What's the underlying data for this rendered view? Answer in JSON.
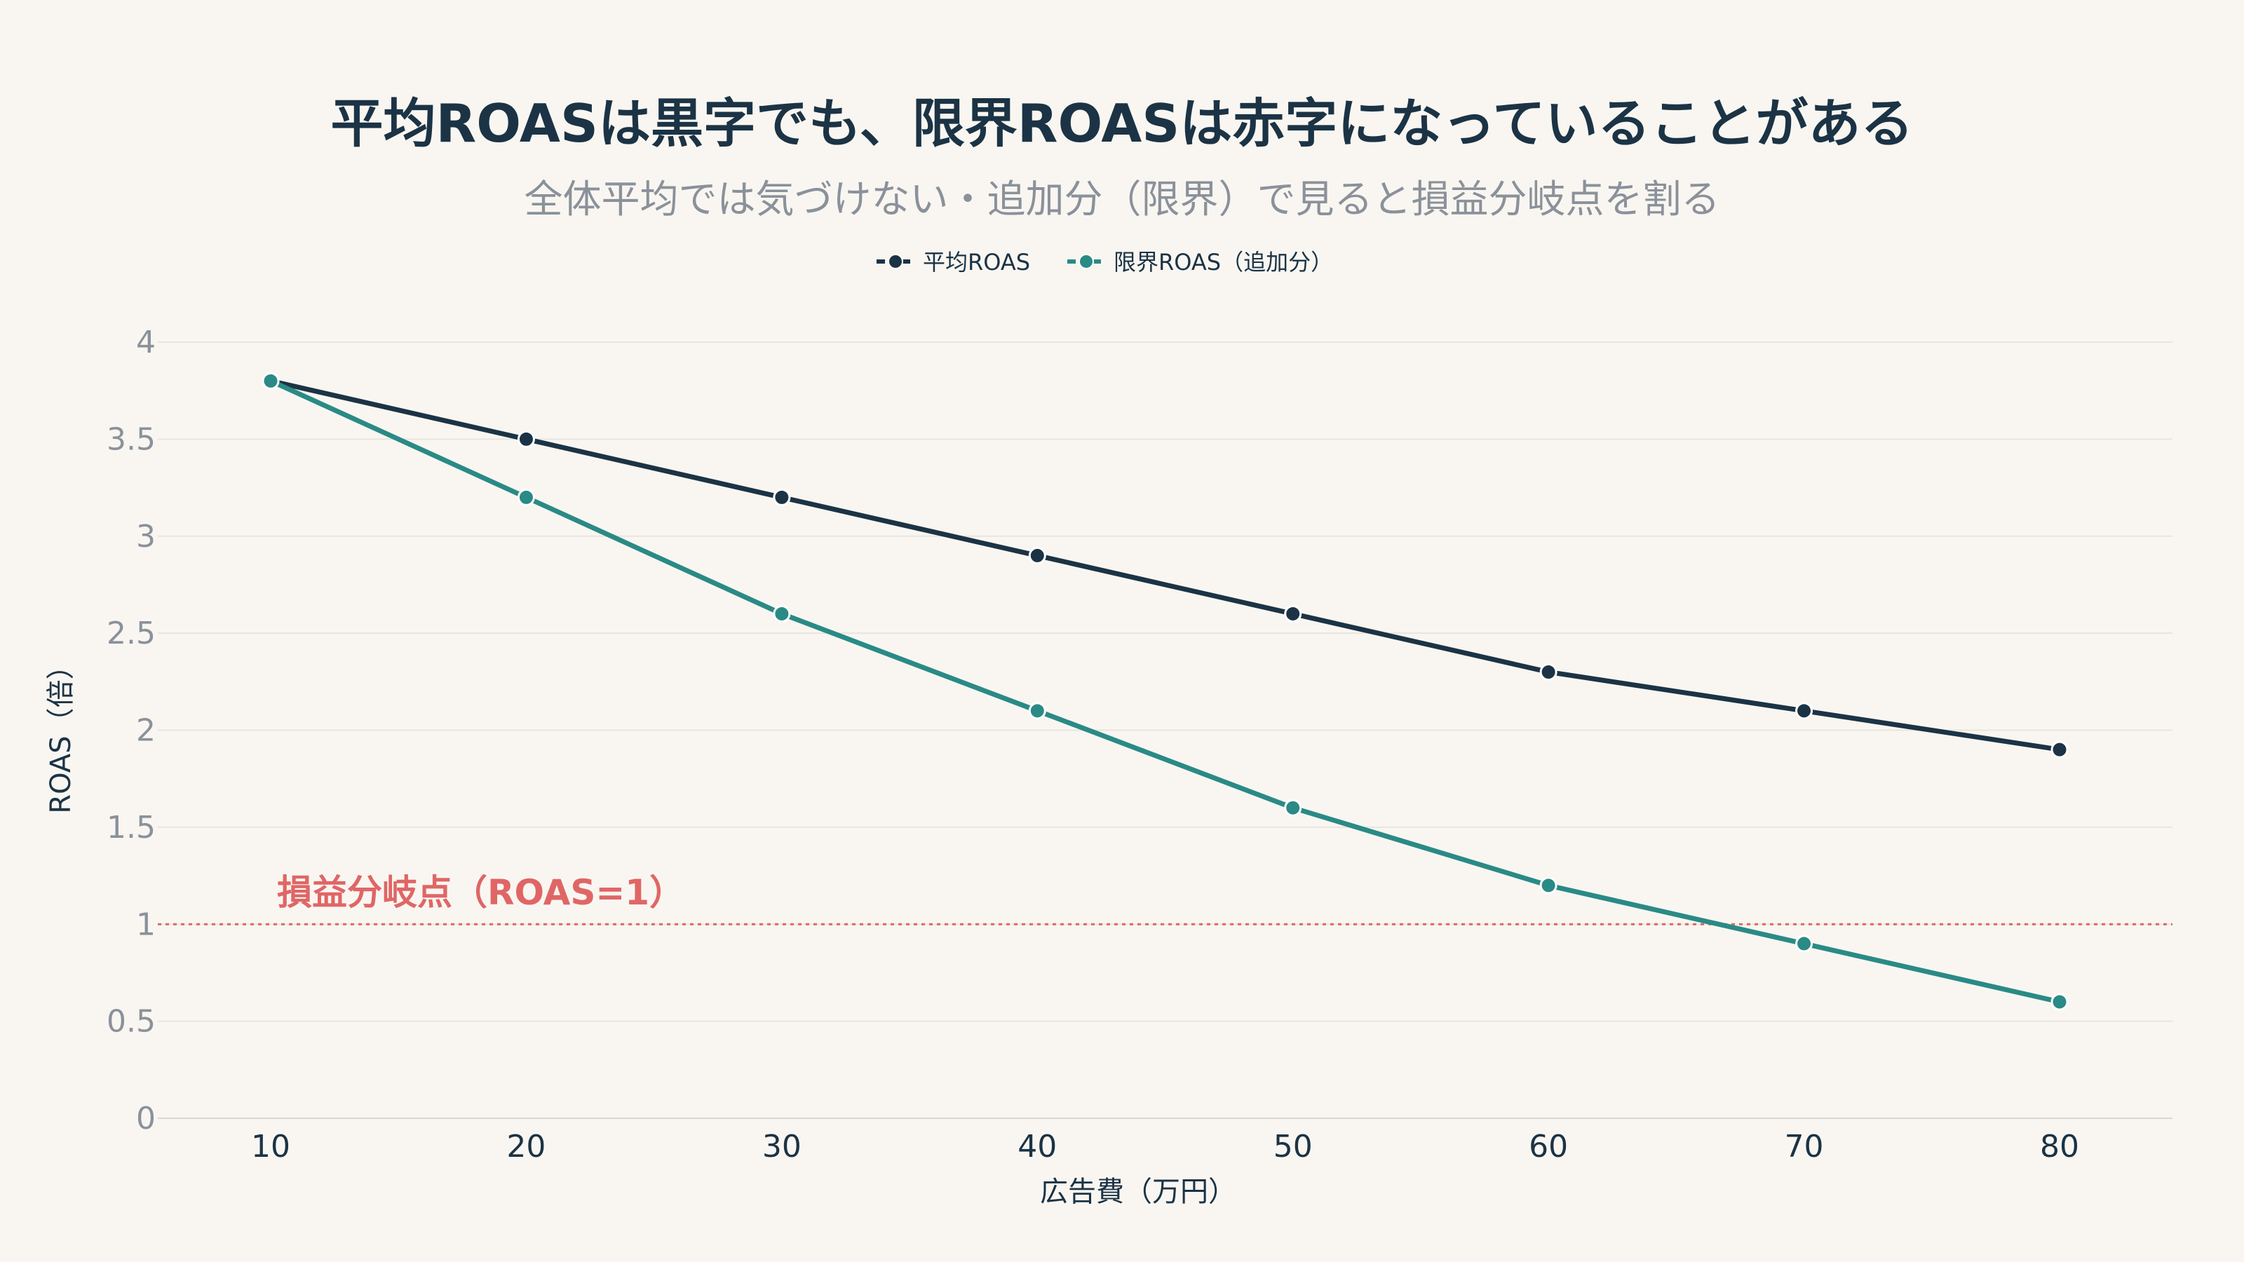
{
  "chart_data": {
    "type": "line",
    "title": "平均ROASは黒字でも、限界ROASは赤字になっていることがある",
    "subtitle": "全体平均では気づけない・追加分（限界）で見ると損益分岐点を割る",
    "xlabel": "広告費（万円）",
    "ylabel": "ROAS（倍）",
    "x": [
      10,
      20,
      30,
      40,
      50,
      60,
      70,
      80
    ],
    "series": [
      {
        "name": "平均ROAS",
        "color": "#1b3345",
        "values": [
          3.8,
          3.5,
          3.2,
          2.9,
          2.6,
          2.3,
          2.1,
          1.9
        ]
      },
      {
        "name": "限界ROAS（追加分）",
        "color": "#2a8a86",
        "values": [
          3.8,
          3.2,
          2.6,
          2.1,
          1.6,
          1.2,
          0.9,
          0.6
        ]
      }
    ],
    "ylim": [
      0,
      4
    ],
    "yticks": [
      "0",
      "0.5",
      "1",
      "1.5",
      "2",
      "2.5",
      "3",
      "3.5",
      "4"
    ],
    "xticks": [
      "10",
      "20",
      "30",
      "40",
      "50",
      "60",
      "70",
      "80"
    ],
    "reference_line": {
      "y": 1,
      "label": "損益分岐点（ROAS=1）",
      "color": "#e06666"
    },
    "legend_position": "top-center",
    "grid": true
  }
}
